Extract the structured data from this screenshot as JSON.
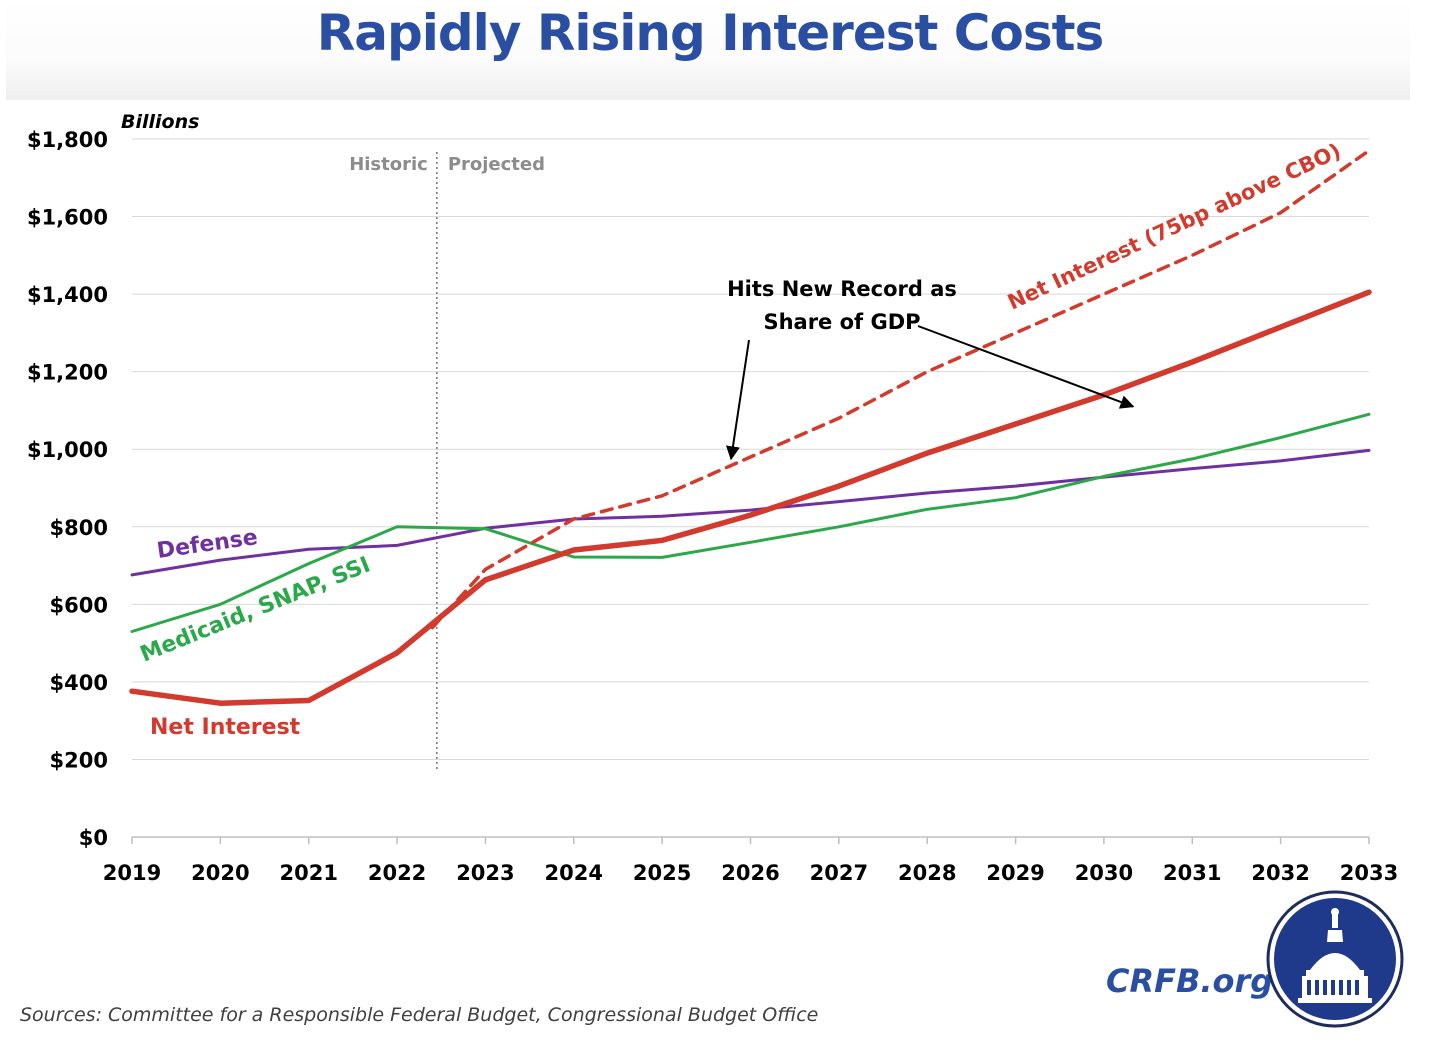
{
  "title": "Rapidly Rising Interest Costs",
  "sources": "Sources: Committee for a Responsible Federal Budget, Congressional Budget Office",
  "brand": "CRFB.org",
  "chart_data": {
    "type": "line",
    "title": "Rapidly Rising Interest Costs",
    "ylabel": "Billions",
    "xlabel": "",
    "x": [
      2019,
      2020,
      2021,
      2022,
      2023,
      2024,
      2025,
      2026,
      2027,
      2028,
      2029,
      2030,
      2031,
      2032,
      2033
    ],
    "ylim": [
      0,
      1800
    ],
    "yticks": [
      0,
      200,
      400,
      600,
      800,
      1000,
      1200,
      1400,
      1600,
      1800
    ],
    "ytick_labels": [
      "$0",
      "$200",
      "$400",
      "$600",
      "$800",
      "$1,000",
      "$1,200",
      "$1,400",
      "$1,600",
      "$1,800"
    ],
    "grid": true,
    "legend": "none (inline labels)",
    "divider": {
      "x": 2022.45,
      "left_label": "Historic",
      "right_label": "Projected"
    },
    "series": [
      {
        "name": "Defense",
        "color": "#7030a0",
        "style": "solid",
        "width": "thin",
        "x": [
          2019,
          2020,
          2021,
          2022,
          2023,
          2024,
          2025,
          2026,
          2027,
          2028,
          2029,
          2030,
          2031,
          2032,
          2033
        ],
        "values": [
          676,
          714,
          742,
          752,
          796,
          820,
          827,
          843,
          865,
          887,
          905,
          928,
          950,
          970,
          997
        ]
      },
      {
        "name": "Medicaid, SNAP, SSI",
        "color": "#2aa84a",
        "style": "solid",
        "width": "thin",
        "x": [
          2019,
          2020,
          2021,
          2022,
          2023,
          2024,
          2025,
          2026,
          2027,
          2028,
          2029,
          2030,
          2031,
          2032,
          2033
        ],
        "values": [
          530,
          600,
          705,
          800,
          795,
          722,
          721,
          760,
          800,
          845,
          875,
          930,
          975,
          1030,
          1090
        ]
      },
      {
        "name": "Net Interest",
        "color": "#d13a2c",
        "style": "solid",
        "width": "thick",
        "x": [
          2019,
          2020,
          2021,
          2022,
          2023,
          2024,
          2025,
          2026,
          2027,
          2028,
          2029,
          2030,
          2031,
          2032,
          2033
        ],
        "values": [
          376,
          345,
          352,
          475,
          663,
          740,
          765,
          830,
          905,
          990,
          1065,
          1140,
          1225,
          1315,
          1405
        ]
      },
      {
        "name": "Net Interest (75bp above CBO)",
        "color": "#d13a2c",
        "style": "dashed",
        "width": "medium",
        "x": [
          2022.4,
          2023,
          2024,
          2025,
          2026,
          2027,
          2028,
          2029,
          2030,
          2031,
          2032,
          2033
        ],
        "values": [
          540,
          690,
          820,
          880,
          980,
          1080,
          1200,
          1300,
          1400,
          1500,
          1610,
          1770
        ]
      }
    ],
    "annotations": [
      {
        "text_lines": [
          "Hits New Record as",
          "Share of GDP"
        ],
        "arrows_to": [
          {
            "x": 2025.78,
            "y": 975
          },
          {
            "x": 2030.33,
            "y": 1110
          }
        ]
      }
    ]
  }
}
